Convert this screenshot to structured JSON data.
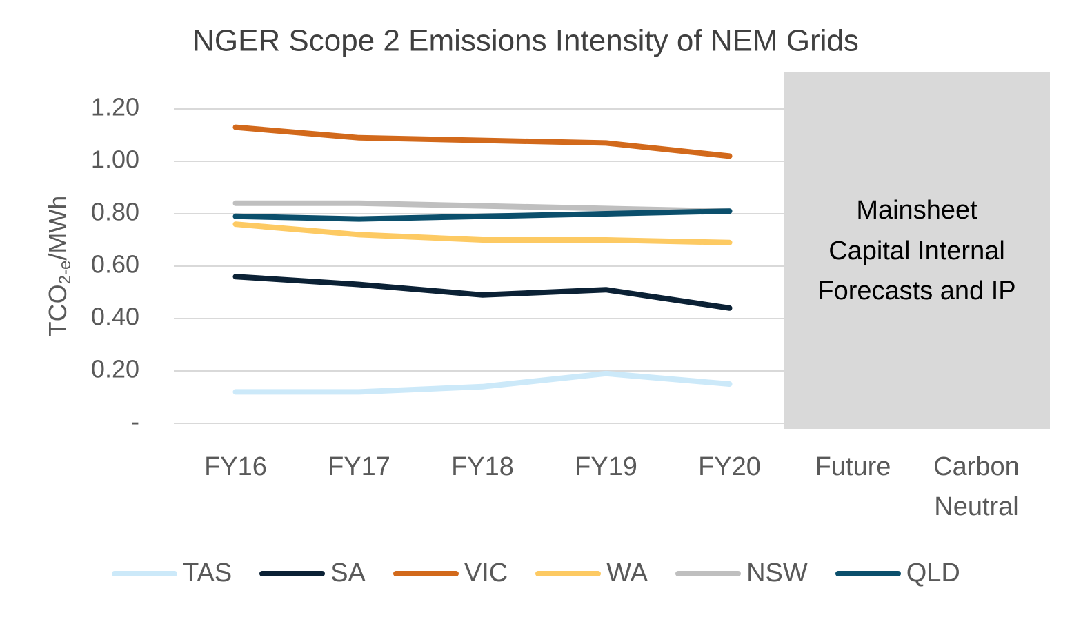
{
  "chart_data": {
    "type": "line",
    "title": "NGER Scope 2 Emissions Intensity of NEM Grids",
    "y_label": [
      "TCO",
      "2-e",
      "/MWh"
    ],
    "annotation": [
      "Mainsheet",
      "Capital Internal",
      "Forecasts and IP"
    ],
    "categories": [
      "FY16",
      "FY17",
      "FY18",
      "FY19",
      "FY20",
      "Future",
      "Carbon Neutral"
    ],
    "series": [
      {
        "name": "TAS",
        "color": "#cce9f9",
        "values": [
          0.12,
          0.12,
          0.14,
          0.19,
          0.15,
          null,
          null
        ]
      },
      {
        "name": "SA",
        "color": "#0b2135",
        "values": [
          0.56,
          0.53,
          0.49,
          0.51,
          0.44,
          null,
          null
        ]
      },
      {
        "name": "VIC",
        "color": "#d2691b",
        "values": [
          1.13,
          1.09,
          1.08,
          1.07,
          1.02,
          null,
          null
        ]
      },
      {
        "name": "WA",
        "color": "#fdca63",
        "values": [
          0.76,
          0.72,
          0.7,
          0.7,
          0.69,
          null,
          null
        ]
      },
      {
        "name": "NSW",
        "color": "#bfbfbf",
        "values": [
          0.84,
          0.84,
          0.83,
          0.82,
          0.81,
          null,
          null
        ]
      },
      {
        "name": "QLD",
        "color": "#0b4f6c",
        "values": [
          0.79,
          0.78,
          0.79,
          0.8,
          0.81,
          null,
          null
        ]
      }
    ],
    "ylim": [
      0,
      1.2
    ],
    "yticks": [
      {
        "value": 0,
        "label": "-"
      },
      {
        "value": 0.2,
        "label": "0.20"
      },
      {
        "value": 0.4,
        "label": "0.40"
      },
      {
        "value": 0.6,
        "label": "0.60"
      },
      {
        "value": 0.8,
        "label": "0.80"
      },
      {
        "value": 1.0,
        "label": "1.00"
      },
      {
        "value": 1.2,
        "label": "1.20"
      }
    ],
    "grid": true,
    "legend": "bottom"
  }
}
